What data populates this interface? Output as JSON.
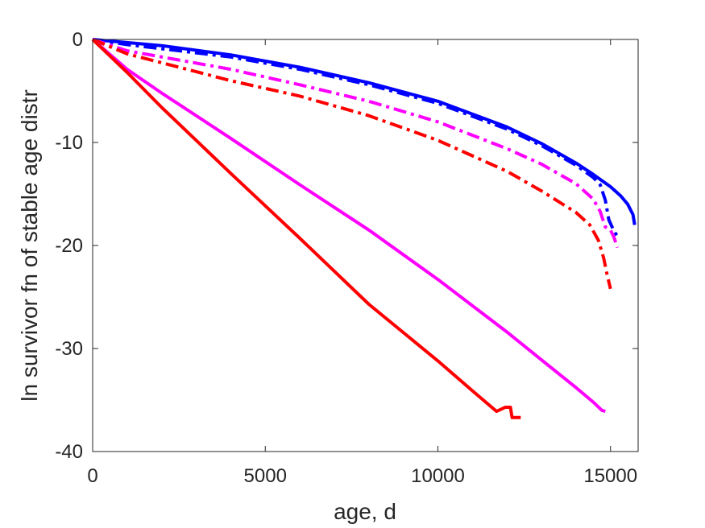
{
  "chart_data": {
    "type": "line",
    "title": "",
    "xlabel": "age, d",
    "ylabel": "ln survivor fn of stable age distr",
    "xlim": [
      0,
      15800
    ],
    "ylim": [
      -40,
      0
    ],
    "xticks": [
      0,
      5000,
      10000,
      15000
    ],
    "yticks": [
      0,
      -10,
      -20,
      -30,
      -40
    ],
    "xtick_labels": [
      "0",
      "5000",
      "10000",
      "15000"
    ],
    "ytick_labels": [
      "0",
      "-10",
      "-20",
      "-30",
      "-40"
    ],
    "grid": false,
    "colors": {
      "blue": "#0000ff",
      "magenta": "#ff00ff",
      "red": "#ff0000",
      "axis": "#262626"
    },
    "series": [
      {
        "color": "#0000ff",
        "style": "solid",
        "x": [
          0,
          2000,
          4000,
          6000,
          8000,
          10000,
          12000,
          13000,
          14000,
          14500,
          15000,
          15300,
          15500,
          15650,
          15700
        ],
        "y": [
          0,
          -0.6,
          -1.5,
          -2.7,
          -4.2,
          -6.0,
          -8.5,
          -10.1,
          -12.0,
          -13.1,
          -14.3,
          -15.2,
          -16.0,
          -17.0,
          -18.0
        ]
      },
      {
        "color": "#0000ff",
        "style": "dashdot",
        "x": [
          0,
          1000,
          4000,
          6000,
          8000,
          10000,
          12000,
          13000,
          14000,
          14500,
          14700,
          14850,
          14950,
          15100,
          15200
        ],
        "y": [
          0,
          -0.5,
          -1.7,
          -2.9,
          -4.4,
          -6.2,
          -8.7,
          -10.3,
          -12.2,
          -13.4,
          -14.1,
          -15.6,
          -17.5,
          -18.6,
          -19.1
        ]
      },
      {
        "color": "#ff00ff",
        "style": "dashdot",
        "x": [
          0,
          1000,
          4000,
          6000,
          8000,
          10000,
          12000,
          13000,
          14000,
          14500,
          14700,
          14850,
          15000,
          15100,
          15200
        ],
        "y": [
          0,
          -1.1,
          -2.9,
          -4.4,
          -6.0,
          -8.0,
          -10.6,
          -12.1,
          -14.0,
          -15.5,
          -16.7,
          -18.2,
          -18.5,
          -19.2,
          -20.2
        ]
      },
      {
        "color": "#ff0000",
        "style": "dashdot",
        "x": [
          0,
          1000,
          4000,
          6000,
          8000,
          10000,
          12000,
          13000,
          14000,
          14400,
          14650,
          14800,
          14900,
          15000
        ],
        "y": [
          0,
          -1.4,
          -4.0,
          -5.5,
          -7.4,
          -9.8,
          -12.8,
          -14.7,
          -16.8,
          -18.0,
          -19.5,
          -21.2,
          -22.8,
          -24.2
        ]
      },
      {
        "color": "#ff00ff",
        "style": "solid",
        "x": [
          0,
          1000,
          2000,
          4000,
          6000,
          8000,
          10000,
          12000,
          13000,
          14000,
          14500,
          14750,
          14850
        ],
        "y": [
          0,
          -2.9,
          -5.2,
          -9.6,
          -14.1,
          -18.5,
          -23.3,
          -28.4,
          -31.1,
          -33.8,
          -35.2,
          -36.0,
          -36.1
        ]
      },
      {
        "color": "#ff0000",
        "style": "solid",
        "x": [
          0,
          1000,
          2000,
          4000,
          6000,
          8000,
          10000,
          11000,
          11700,
          11950,
          12100,
          12150,
          12200,
          12400
        ],
        "y": [
          0,
          -3.2,
          -6.6,
          -13.0,
          -19.3,
          -25.7,
          -31.2,
          -34.1,
          -36.1,
          -35.7,
          -35.7,
          -36.7,
          -36.7,
          -36.7
        ]
      }
    ]
  }
}
